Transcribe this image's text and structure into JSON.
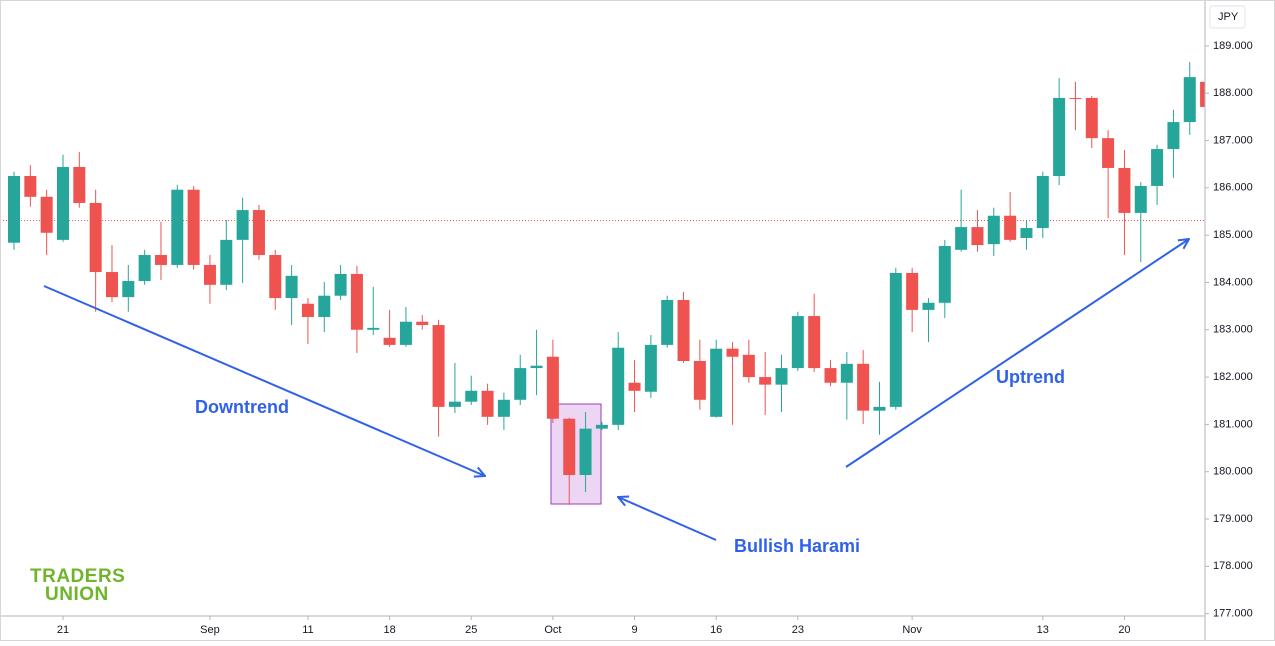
{
  "chart_data": {
    "type": "candlestick",
    "currency": "JPY",
    "categories": [
      null,
      null,
      null,
      "21",
      null,
      null,
      null,
      null,
      null,
      null,
      null,
      null,
      "Sep",
      null,
      null,
      null,
      null,
      null,
      "11",
      null,
      null,
      null,
      null,
      "18",
      null,
      null,
      null,
      null,
      "25",
      null,
      null,
      null,
      null,
      "Oct",
      null,
      null,
      null,
      null,
      "9",
      null,
      null,
      null,
      null,
      "16",
      null,
      null,
      null,
      null,
      "23",
      null,
      null,
      null,
      null,
      null,
      null,
      "Nov",
      null,
      null,
      null,
      null,
      null,
      null,
      null,
      "13",
      null,
      null,
      null,
      null,
      "20",
      null,
      null,
      null,
      null,
      null
    ],
    "open": [
      184.84,
      186.25,
      185.81,
      184.9,
      186.44,
      185.68,
      184.22,
      183.69,
      184.03,
      184.58,
      184.37,
      185.96,
      184.37,
      183.95,
      184.9,
      185.53,
      184.58,
      183.67,
      183.55,
      183.27,
      183.72,
      184.18,
      183.0,
      182.83,
      182.68,
      183.17,
      183.1,
      181.37,
      181.48,
      181.71,
      181.16,
      181.52,
      182.19,
      182.43,
      181.12,
      179.93,
      180.91,
      180.99,
      181.88,
      181.69,
      182.68,
      183.63,
      182.34,
      181.16,
      182.6,
      182.47,
      182.0,
      181.84,
      182.19,
      183.29,
      182.19,
      181.88,
      182.28,
      181.29,
      181.37,
      184.2,
      183.42,
      183.57,
      184.69,
      185.17,
      184.81,
      185.41,
      184.94,
      185.15,
      186.25,
      187.9,
      187.9,
      187.05,
      186.42,
      185.47,
      186.04,
      186.82,
      187.39,
      188.24
    ],
    "high": [
      186.34,
      186.48,
      185.96,
      186.7,
      186.76,
      185.96,
      184.79,
      184.37,
      184.69,
      185.28,
      186.06,
      186.04,
      184.58,
      185.32,
      185.79,
      185.64,
      184.69,
      184.37,
      183.67,
      184.01,
      184.37,
      184.35,
      183.91,
      183.42,
      183.48,
      183.31,
      183.21,
      182.3,
      182.03,
      181.86,
      181.67,
      182.47,
      183.0,
      182.79,
      181.14,
      181.26,
      181.05,
      182.95,
      182.36,
      182.89,
      183.72,
      183.8,
      182.79,
      182.79,
      182.74,
      182.79,
      182.53,
      182.47,
      183.38,
      183.76,
      182.36,
      182.53,
      182.57,
      181.9,
      184.31,
      184.31,
      183.67,
      184.9,
      185.96,
      185.53,
      185.58,
      185.91,
      185.32,
      186.34,
      188.32,
      188.24,
      187.94,
      187.22,
      186.8,
      186.12,
      186.91,
      187.65,
      188.66,
      188.32
    ],
    "low": [
      184.69,
      185.6,
      184.58,
      184.86,
      185.58,
      183.38,
      183.59,
      183.38,
      183.95,
      184.05,
      184.31,
      184.27,
      183.55,
      183.84,
      183.99,
      184.48,
      183.42,
      183.1,
      182.7,
      182.95,
      183.63,
      182.51,
      182.89,
      182.64,
      182.64,
      183.0,
      180.74,
      181.24,
      181.41,
      180.99,
      180.88,
      181.41,
      181.62,
      181.03,
      179.3,
      179.57,
      180.88,
      180.88,
      181.26,
      181.56,
      182.62,
      182.3,
      181.31,
      181.14,
      180.99,
      181.88,
      181.2,
      181.26,
      182.13,
      182.11,
      181.81,
      181.1,
      181.01,
      180.78,
      181.31,
      182.95,
      182.74,
      183.25,
      184.65,
      184.65,
      184.56,
      184.86,
      184.69,
      184.94,
      186.06,
      187.22,
      186.84,
      185.36,
      184.58,
      184.43,
      185.64,
      186.21,
      187.12,
      187.65
    ],
    "close": [
      186.25,
      185.81,
      185.05,
      186.44,
      185.68,
      184.22,
      183.69,
      184.03,
      184.58,
      184.37,
      185.96,
      184.37,
      183.95,
      184.9,
      185.53,
      184.58,
      183.67,
      184.14,
      183.27,
      183.72,
      184.18,
      183.0,
      183.04,
      182.68,
      183.17,
      183.1,
      181.37,
      181.48,
      181.71,
      181.16,
      181.52,
      182.19,
      182.24,
      181.12,
      179.93,
      180.91,
      180.99,
      182.62,
      181.71,
      182.68,
      183.63,
      182.34,
      181.52,
      182.6,
      182.43,
      182.0,
      181.84,
      182.19,
      183.29,
      182.19,
      181.88,
      182.28,
      181.29,
      181.37,
      184.2,
      183.42,
      183.57,
      184.77,
      185.17,
      184.79,
      185.41,
      184.9,
      185.15,
      186.25,
      187.9,
      187.88,
      187.05,
      186.42,
      185.47,
      186.04,
      186.82,
      187.39,
      188.34,
      187.71
    ],
    "up_color": "#26a69a",
    "down_color": "#ef5350",
    "ylim": [
      176.95,
      189.97
    ],
    "yticks": [
      {
        "value": 177,
        "label": "177.000"
      },
      {
        "value": 178,
        "label": "178.000"
      },
      {
        "value": 179,
        "label": "179.000"
      },
      {
        "value": 180,
        "label": "180.000"
      },
      {
        "value": 181,
        "label": "181.000"
      },
      {
        "value": 182,
        "label": "182.000"
      },
      {
        "value": 183,
        "label": "183.000"
      },
      {
        "value": 184,
        "label": "184.000"
      },
      {
        "value": 185,
        "label": "185.000"
      },
      {
        "value": 186,
        "label": "186.000"
      },
      {
        "value": 187,
        "label": "187.000"
      },
      {
        "value": 188,
        "label": "188.000"
      },
      {
        "value": 189,
        "label": "189.000"
      }
    ],
    "reference_line": 185.31,
    "reference_color": "#ef5350",
    "annotations": [
      "Downtrend",
      "Bullish Harami",
      "Uptrend"
    ]
  },
  "logo": [
    "TRADERS",
    "UNION"
  ]
}
